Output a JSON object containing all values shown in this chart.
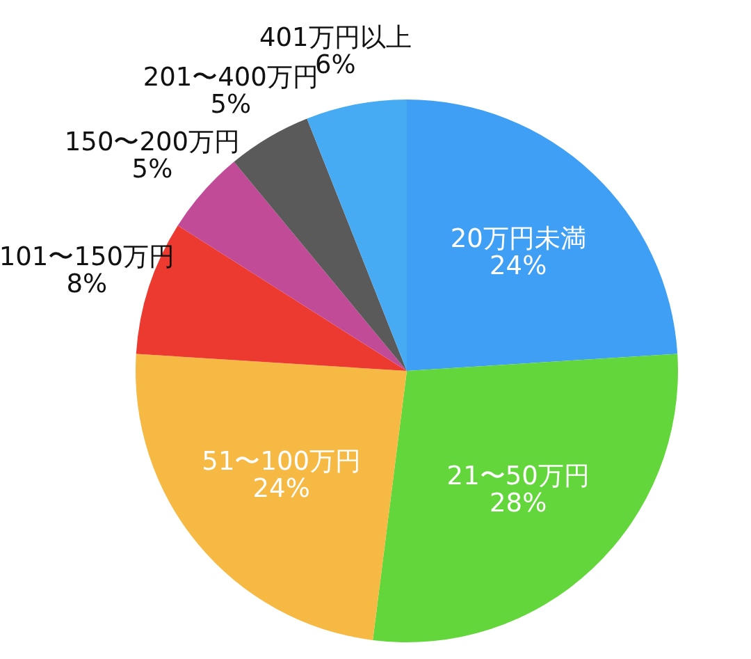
{
  "chart_data": {
    "type": "pie",
    "categories": [
      "20万円未満",
      "21〜50万円",
      "51〜100万円",
      "101〜150万円",
      "150〜200万円",
      "201〜400万円",
      "401万円以上"
    ],
    "values": [
      24,
      28,
      24,
      8,
      5,
      5,
      6
    ],
    "value_labels": [
      "24%",
      "28%",
      "24%",
      "8%",
      "5%",
      "5%",
      "6%"
    ],
    "colors": [
      "#3f9ff4",
      "#62d63a",
      "#f6b944",
      "#ec3a30",
      "#c24b98",
      "#5a5a5a",
      "#46abf3"
    ]
  }
}
